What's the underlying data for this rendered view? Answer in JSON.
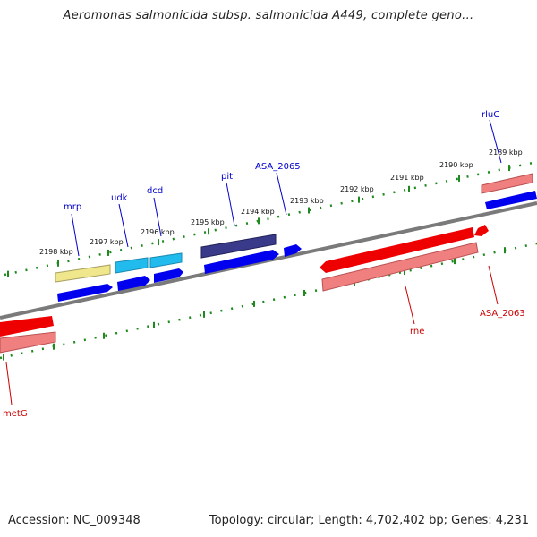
{
  "title": "Aeromonas salmonicida subsp. salmonicida A449, complete geno...",
  "footer": {
    "accession": "Accession: NC_009348",
    "topology": "Topology: circular; Length: 4,702,402 bp; Genes: 4,231"
  },
  "colors": {
    "backbone": "#7a7a7a",
    "tick": "#1e8a1e",
    "label_forward": "#0000cc",
    "label_reverse": "#cc0000",
    "gene_blue": "#0000ee",
    "gene_cyan": "#22bbee",
    "gene_yellow": "#f0e68c",
    "gene_navy": "#3a3a8a",
    "gene_red": "#ee0000",
    "gene_pink": "#f08080"
  },
  "kbp_labels": [
    "2198 kbp",
    "2197 kbp",
    "2196 kbp",
    "2195 kbp",
    "2194 kbp",
    "2193 kbp",
    "2192 kbp",
    "2191 kbp",
    "2190 kbp",
    "2189 kbp"
  ],
  "gene_labels": {
    "forward": [
      "mrp",
      "udk",
      "dcd",
      "pit",
      "ASA_2065",
      "rluC"
    ],
    "reverse": [
      "metG",
      "rne",
      "ASA_2063"
    ]
  }
}
